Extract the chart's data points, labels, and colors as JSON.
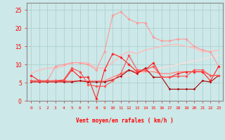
{
  "x": [
    0,
    1,
    2,
    3,
    4,
    5,
    6,
    7,
    8,
    9,
    10,
    11,
    12,
    13,
    14,
    15,
    16,
    17,
    18,
    19,
    20,
    21,
    22,
    23
  ],
  "bg_color": "#cce8e8",
  "grid_color": "#aacccc",
  "xlabel": "Vent moyen/en rafales ( km/h )",
  "ylim": [
    0,
    27
  ],
  "yticks": [
    0,
    5,
    10,
    15,
    20,
    25
  ],
  "lines": [
    {
      "y": [
        7.0,
        5.5,
        5.5,
        5.5,
        5.5,
        8.5,
        6.5,
        6.5,
        0.5,
        8.5,
        13.0,
        12.0,
        10.0,
        8.0,
        8.5,
        10.5,
        6.5,
        6.5,
        7.5,
        8.0,
        8.0,
        8.0,
        5.5,
        9.5
      ],
      "color": "#ff2020",
      "lw": 0.8,
      "marker": "D",
      "ms": 1.8,
      "zorder": 5
    },
    {
      "y": [
        5.2,
        5.2,
        5.2,
        5.2,
        5.2,
        5.2,
        5.5,
        5.2,
        5.2,
        5.2,
        5.8,
        6.8,
        8.5,
        7.5,
        9.0,
        6.5,
        6.5,
        3.2,
        3.2,
        3.2,
        3.2,
        5.5,
        5.2,
        7.0
      ],
      "color": "#aa0000",
      "lw": 0.8,
      "marker": "D",
      "ms": 1.5,
      "zorder": 4
    },
    {
      "y": [
        5.5,
        5.5,
        5.5,
        5.5,
        5.8,
        9.0,
        8.0,
        4.5,
        4.0,
        4.0,
        5.5,
        7.5,
        12.5,
        8.5,
        8.5,
        9.5,
        6.5,
        6.5,
        6.8,
        6.8,
        8.5,
        8.5,
        7.0,
        7.0
      ],
      "color": "#ff5050",
      "lw": 0.8,
      "marker": "D",
      "ms": 1.8,
      "zorder": 5
    },
    {
      "y": [
        5.5,
        5.5,
        5.5,
        5.5,
        5.5,
        5.5,
        5.5,
        5.5,
        5.5,
        5.5,
        6.5,
        7.5,
        8.5,
        8.0,
        8.0,
        8.0,
        7.5,
        7.5,
        8.0,
        8.0,
        8.0,
        8.0,
        7.0,
        7.0
      ],
      "color": "#ff8888",
      "lw": 1.0,
      "marker": null,
      "ms": 0,
      "zorder": 3
    },
    {
      "y": [
        7.5,
        8.5,
        9.0,
        9.0,
        9.5,
        10.5,
        10.5,
        10.5,
        9.0,
        9.0,
        10.5,
        12.5,
        13.5,
        13.0,
        14.0,
        14.5,
        15.0,
        15.5,
        15.5,
        15.0,
        14.5,
        13.5,
        13.5,
        14.0
      ],
      "color": "#ffbbbb",
      "lw": 1.0,
      "marker": null,
      "ms": 0,
      "zorder": 2
    },
    {
      "y": [
        5.0,
        5.0,
        5.0,
        5.0,
        5.0,
        5.5,
        5.5,
        5.5,
        5.5,
        5.5,
        6.0,
        6.5,
        7.0,
        7.5,
        8.0,
        8.5,
        9.0,
        9.5,
        10.0,
        10.5,
        11.0,
        11.5,
        12.0,
        12.5
      ],
      "color": "#ffdddd",
      "lw": 1.0,
      "marker": null,
      "ms": 0,
      "zorder": 2
    },
    {
      "y": [
        5.5,
        5.5,
        5.5,
        9.5,
        10.0,
        10.5,
        10.5,
        10.0,
        8.5,
        13.5,
        23.5,
        24.5,
        22.5,
        21.5,
        21.5,
        17.5,
        16.5,
        16.5,
        17.0,
        17.0,
        15.0,
        14.0,
        13.5,
        9.5
      ],
      "color": "#ff9999",
      "lw": 0.8,
      "marker": "D",
      "ms": 1.8,
      "zorder": 4
    }
  ],
  "wind_symbols": [
    "→",
    "↗",
    "↗",
    "↗",
    "↗",
    "↗",
    "↗",
    "↗",
    "←",
    "←",
    "←",
    "←",
    "←",
    "↙",
    "↙",
    "↙",
    "↑",
    "↖",
    "←",
    "←",
    "↙",
    "←",
    "→",
    "↗"
  ],
  "text_color": "#ff0000",
  "spine_color": "#888888"
}
